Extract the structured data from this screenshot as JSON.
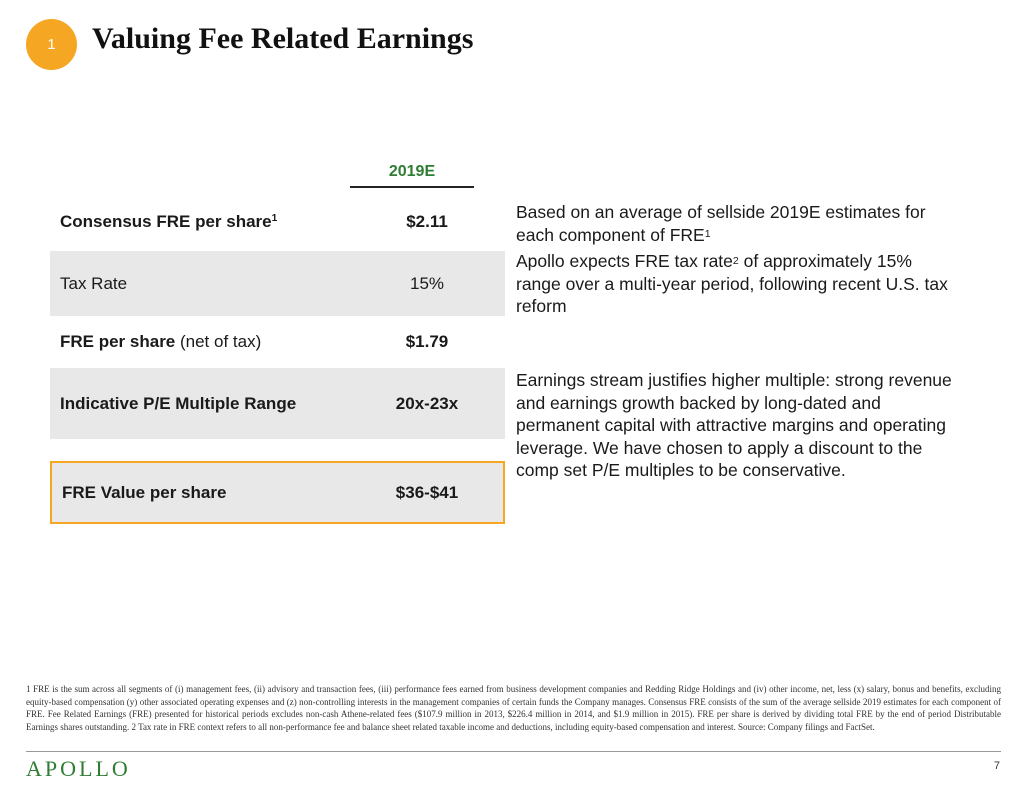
{
  "header": {
    "badge": "1",
    "title": "Valuing Fee Related Earnings"
  },
  "table": {
    "column_header": "2019E",
    "rows": [
      {
        "label": "Consensus FRE per share",
        "sup": "1",
        "value": "$2.11"
      },
      {
        "label": "Tax Rate",
        "value": "15%"
      },
      {
        "label": "FRE per share",
        "suffix": " (net of tax)",
        "value": "$1.79"
      },
      {
        "label": "Indicative P/E Multiple Range",
        "value": "20x-23x"
      },
      {
        "label": "FRE Value per share",
        "value": "$36-$41"
      }
    ]
  },
  "notes": {
    "n1_a": "Based on an average of sellside 2019E estimates for each component of FRE",
    "n1_sup": "1",
    "n2_a": "Apollo expects FRE tax rate",
    "n2_sup": "2",
    "n2_b": " of approximately 15% range over a multi-year period, following recent U.S. tax reform",
    "n3": "Earnings stream justifies higher multiple: strong revenue and earnings growth backed by long-dated and permanent capital with attractive margins and operating leverage. We have chosen to apply a discount to the comp set P/E multiples to be conservative."
  },
  "footnote": "1 FRE is the sum across all segments of (i) management fees, (ii) advisory and transaction fees, (iii) performance fees earned from business development companies and Redding Ridge Holdings and (iv) other income, net, less (x) salary, bonus and benefits, excluding equity-based compensation (y) other associated operating expenses and (z) non-controlling interests in the management companies of certain funds the Company manages. Consensus FRE consists of the sum of the average sellside 2019 estimates for each component of FRE. Fee Related Earnings (FRE) presented for historical periods excludes non-cash Athene-related fees ($107.9 million in 2013, $226.4 million in 2014, and $1.9 million in 2015). FRE per share is derived by dividing total FRE by the end of period Distributable Earnings shares outstanding. 2 Tax rate in FRE context refers to all non-performance fee and balance sheet related taxable income and deductions, including equity-based compensation and interest. Source: Company filings and FactSet.",
  "footer": {
    "logo": "APOLLO",
    "page": "7"
  }
}
